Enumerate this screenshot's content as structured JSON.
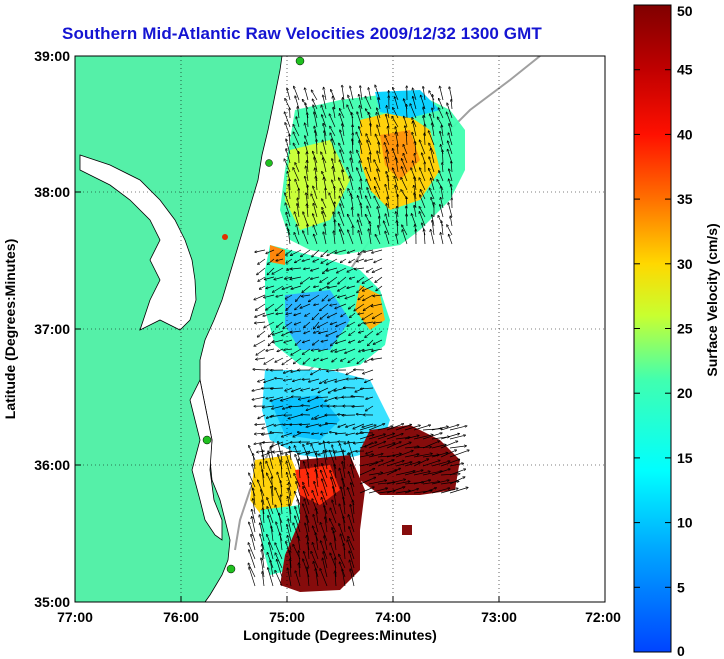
{
  "title": "Southern Mid-Atlantic Raw Velocities 2009/12/32 1300 GMT",
  "x_axis": {
    "label": "Longitude (Degrees:Minutes)",
    "ticks": [
      "77:00",
      "76:00",
      "75:00",
      "74:00",
      "73:00",
      "72:00"
    ]
  },
  "y_axis": {
    "label": "Latitude (Degrees:Minutes)",
    "ticks": [
      "39:00",
      "38:00",
      "37:00",
      "36:00",
      "35:00"
    ]
  },
  "colorbar": {
    "label": "Surface Velocity (cm/s)",
    "ticks": [
      "50",
      "45",
      "40",
      "35",
      "30",
      "25",
      "20",
      "15",
      "10",
      "5",
      "0"
    ],
    "range": [
      0,
      50
    ],
    "colors": [
      "#0044ff",
      "#00c8ff",
      "#30ffc0",
      "#d0ff30",
      "#ffd000",
      "#ff6000",
      "#e00000",
      "#800000"
    ]
  },
  "colors": {
    "land": "#55f0a8",
    "title": "#1414d2",
    "station": "#20c020",
    "station_alt": "#e03000"
  },
  "chart_data": {
    "type": "heatmap",
    "title": "Southern Mid-Atlantic Raw Velocities 2009/12/32 1300 GMT",
    "xlabel": "Longitude (Degrees:Minutes)",
    "ylabel": "Latitude (Degrees:Minutes)",
    "xlim": [
      -77,
      -72
    ],
    "ylim": [
      35,
      39
    ],
    "colorbar_range": [
      0,
      50
    ],
    "grid": true
  }
}
